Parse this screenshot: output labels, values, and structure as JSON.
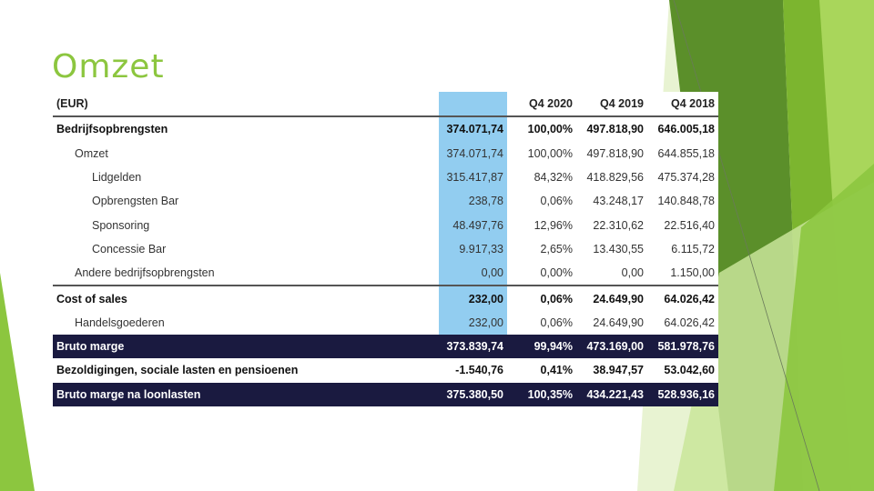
{
  "slide": {
    "title": "Omzet"
  },
  "table": {
    "headers": [
      "(EUR)",
      "",
      "Q4 2020",
      "Q4 2019",
      "Q4 2018"
    ],
    "rows": [
      {
        "label": "Bedrijfsopbrengsten",
        "q4_2020": "374.071,74",
        "pct": "100,00%",
        "q4_2019": "497.818,90",
        "q4_2018": "646.005,18"
      },
      {
        "label": "Omzet",
        "q4_2020": "374.071,74",
        "pct": "100,00%",
        "q4_2019": "497.818,90",
        "q4_2018": "644.855,18"
      },
      {
        "label": "Lidgelden",
        "q4_2020": "315.417,87",
        "pct": "84,32%",
        "q4_2019": "418.829,56",
        "q4_2018": "475.374,28"
      },
      {
        "label": "Opbrengsten Bar",
        "q4_2020": "238,78",
        "pct": "0,06%",
        "q4_2019": "43.248,17",
        "q4_2018": "140.848,78"
      },
      {
        "label": "Sponsoring",
        "q4_2020": "48.497,76",
        "pct": "12,96%",
        "q4_2019": "22.310,62",
        "q4_2018": "22.516,40"
      },
      {
        "label": "Concessie Bar",
        "q4_2020": "9.917,33",
        "pct": "2,65%",
        "q4_2019": "13.430,55",
        "q4_2018": "6.115,72"
      },
      {
        "label": "Andere bedrijfsopbrengsten",
        "q4_2020": "0,00",
        "pct": "0,00%",
        "q4_2019": "0,00",
        "q4_2018": "1.150,00"
      },
      {
        "label": "Cost of sales",
        "q4_2020": "232,00",
        "pct": "0,06%",
        "q4_2019": "24.649,90",
        "q4_2018": "64.026,42"
      },
      {
        "label": "Handelsgoederen",
        "q4_2020": "232,00",
        "pct": "0,06%",
        "q4_2019": "24.649,90",
        "q4_2018": "64.026,42"
      },
      {
        "label": "Bruto marge",
        "q4_2020": "373.839,74",
        "pct": "99,94%",
        "q4_2019": "473.169,00",
        "q4_2018": "581.978,76"
      },
      {
        "label": "Bezoldigingen, sociale lasten en pensioenen",
        "q4_2020": "-1.540,76",
        "pct": "0,41%",
        "q4_2019": "38.947,57",
        "q4_2018": "53.042,60"
      },
      {
        "label": "Bruto marge na loonlasten",
        "q4_2020": "375.380,50",
        "pct": "100,35%",
        "q4_2019": "434.221,43",
        "q4_2018": "528.936,16"
      }
    ]
  },
  "colors": {
    "title": "#8cc63f",
    "highlight_column": "#92cdf0",
    "dark_row": "#1a1a40",
    "green_dark": "#4e8a1f",
    "green_mid": "#7bb32e",
    "green_light": "#a8d85a"
  }
}
